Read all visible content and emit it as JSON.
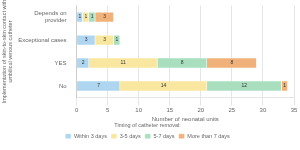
{
  "chart_data": {
    "type": "bar",
    "orientation": "horizontal",
    "stacked": true,
    "categories": [
      "Depends on\nprovider",
      "Exceptional cases",
      "YES",
      "No"
    ],
    "series": [
      {
        "name": "Within 3 days",
        "color": "#aed6f1",
        "values": [
          1,
          3,
          2,
          7
        ]
      },
      {
        "name": "3-5 days",
        "color": "#f9e79f",
        "values": [
          1,
          3,
          11,
          14
        ]
      },
      {
        "name": "5-7 days",
        "color": "#a9dfbf",
        "values": [
          1,
          1,
          8,
          12
        ]
      },
      {
        "name": "More than 7 days",
        "color": "#f0b27a",
        "values": [
          3,
          0,
          8,
          1
        ]
      }
    ],
    "xlabel": "Number of neonatal units",
    "ylabel": "Implementation of skin-to-skin contact with\numbilical venous catheter",
    "xlim": [
      0,
      35
    ],
    "xticks": [
      0,
      5,
      10,
      15,
      20,
      25,
      30,
      35
    ],
    "legend_title": "Timing of catheter removal:",
    "legend": "bottom",
    "grid": true,
    "data_labels": true
  }
}
